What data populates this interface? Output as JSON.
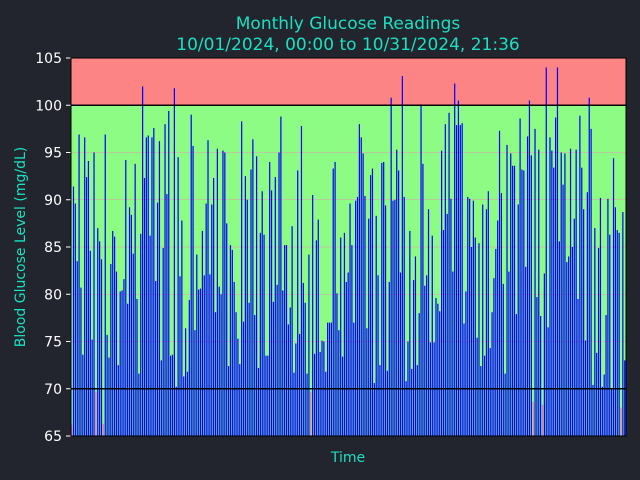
{
  "chart_data": {
    "type": "bar",
    "title": "Monthly Glucose Readings",
    "subtitle": "10/01/2024, 00:00 to 10/31/2024, 21:36",
    "xlabel": "Time",
    "ylabel": "Blood Glucose Level (mg/dL)",
    "ylim": [
      65,
      105
    ],
    "yticks": [
      "65",
      "70",
      "75",
      "80",
      "85",
      "90",
      "95",
      "100",
      "105"
    ],
    "x_range": [
      "10/01/2024, 00:00",
      "10/31/2024, 21:36"
    ],
    "bands": [
      {
        "from": 65,
        "to": 70,
        "color": "#8cfc84"
      },
      {
        "from": 70,
        "to": 100,
        "color": "#8cfc84"
      },
      {
        "from": 100,
        "to": 105,
        "color": "#fc8484"
      }
    ],
    "threshold_lines": [
      70,
      100
    ],
    "grid": true,
    "colors": {
      "normal": "#0000ff",
      "low": "#ff69b4",
      "grid": "#ff80c0",
      "threshold": "#000000"
    },
    "values": [
      66.2,
      91.4,
      89.6,
      83.5,
      96.9,
      80.7,
      73.6,
      96.6,
      92.4,
      94.1,
      84.6,
      75.2,
      95.0,
      69.7,
      87.0,
      85.6,
      83.7,
      66.3,
      96.9,
      75.7,
      73.3,
      83.2,
      86.7,
      86.1,
      82.4,
      72.5,
      80.3,
      80.4,
      81.6,
      94.2,
      79.0,
      89.2,
      88.4,
      84.3,
      93.8,
      79.5,
      71.6,
      86.4,
      102.0,
      92.3,
      96.6,
      96.8,
      86.2,
      96.6,
      97.6,
      81.4,
      89.7,
      96.2,
      73.0,
      84.9,
      98.0,
      90.6,
      99.4,
      73.5,
      73.6,
      101.8,
      70.2,
      94.5,
      81.9,
      87.8,
      71.3,
      76.4,
      71.8,
      79.4,
      99.0,
      95.7,
      76.2,
      84.2,
      80.5,
      80.6,
      86.7,
      82.0,
      89.6,
      96.3,
      82.1,
      89.5,
      92.3,
      78.1,
      95.4,
      80.8,
      80.0,
      95.2,
      95.0,
      87.5,
      72.4,
      85.2,
      84.7,
      81.3,
      78.1,
      75.3,
      72.6,
      98.3,
      77.1,
      92.5,
      90.0,
      79.1,
      93.2,
      96.4,
      77.8,
      94.6,
      72.2,
      86.5,
      90.9,
      86.3,
      73.5,
      73.5,
      94.0,
      91.0,
      79.2,
      92.4,
      81.0,
      95.0,
      98.8,
      80.4,
      85.2,
      85.2,
      76.8,
      78.6,
      87.2,
      71.7,
      74.8,
      93.1,
      75.8,
      97.8,
      81.2,
      79.1,
      71.6,
      84.2,
      69.7,
      90.5,
      73.7,
      85.7,
      87.9,
      73.9,
      75.1,
      75.0,
      71.8,
      77.0,
      77.0,
      77.0,
      93.3,
      94.0,
      80.1,
      76.2,
      86.0,
      73.4,
      86.5,
      81.3,
      82.3,
      89.6,
      85.2,
      77.0,
      89.9,
      90.3,
      98.0,
      96.6,
      94.9,
      90.4,
      76.4,
      88.0,
      92.6,
      93.3,
      70.6,
      88.3,
      82.0,
      72.5,
      93.9,
      94.0,
      89.4,
      71.9,
      81.3,
      100.8,
      89.9,
      90.0,
      95.3,
      93.1,
      82.3,
      103.1,
      90.3,
      70.8,
      75.0,
      86.7,
      72.1,
      81.5,
      84.0,
      72.5,
      78.0,
      100.0,
      93.8,
      80.9,
      82.0,
      89.0,
      74.9,
      86.2,
      74.9,
      79.6,
      79.0,
      78.2,
      95.2,
      86.8,
      98.0,
      88.5,
      99.2,
      90.1,
      82.4,
      102.3,
      97.9,
      100.5,
      97.9,
      98.1,
      76.9,
      80.3,
      90.3,
      90.1,
      85.0,
      89.9,
      86.0,
      75.4,
      85.4,
      72.4,
      89.5,
      73.5,
      89.0,
      90.9,
      74.3,
      78.1,
      81.7,
      84.8,
      87.8,
      97.3,
      90.7,
      81.1,
      71.6,
      95.8,
      82.4,
      94.9,
      93.6,
      93.6,
      77.9,
      89.5,
      98.6,
      93.2,
      93.1,
      82.9,
      96.7,
      100.5,
      94.7,
      68.6,
      97.5,
      79.7,
      95.3,
      77.7,
      68.3,
      82.2,
      104.0,
      76.5,
      96.6,
      95.2,
      93.4,
      98.7,
      104.0,
      85.6,
      95.0,
      91.6,
      94.9,
      83.4,
      84.0,
      95.4,
      85.0,
      88.0,
      95.3,
      79.5,
      98.9,
      93.4,
      89.0,
      75.1,
      90.8,
      100.8,
      97.5,
      70.4,
      87.0,
      73.8,
      84.9,
      90.2,
      70.2,
      71.5,
      77.8,
      90.1,
      86.3,
      70.0,
      94.4,
      89.2,
      86.8,
      86.5,
      68.0,
      88.7,
      73.0
    ]
  }
}
